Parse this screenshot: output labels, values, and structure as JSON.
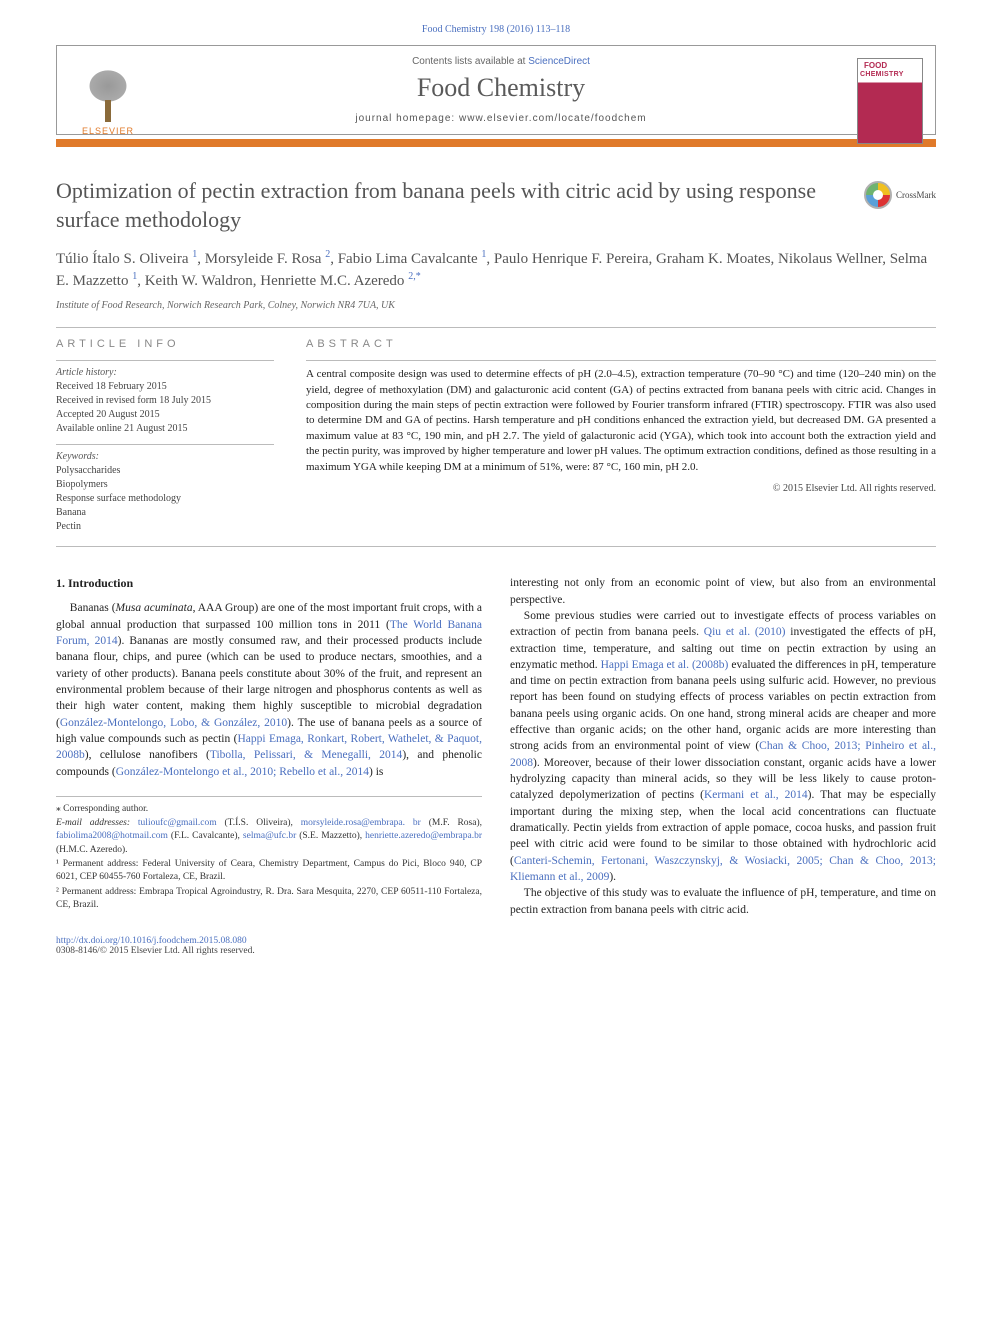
{
  "citation": "Food Chemistry 198 (2016) 113–118",
  "header": {
    "contents_prefix": "Contents lists available at ",
    "contents_link": "ScienceDirect",
    "journal": "Food Chemistry",
    "homepage_prefix": "journal homepage: ",
    "homepage_url": "www.elsevier.com/locate/foodchem",
    "publisher": "ELSEVIER",
    "cover_top": "FOOD",
    "cover_bottom": "CHEMISTRY"
  },
  "title": "Optimization of pectin extraction from banana peels with citric acid by using response surface methodology",
  "crossmark": "CrossMark",
  "authors_html": "Túlio Ítalo S. Oliveira <sup>1</sup>, Morsyleide F. Rosa <sup>2</sup>, Fabio Lima Cavalcante <sup>1</sup>, Paulo Henrique F. Pereira, Graham K. Moates, Nikolaus Wellner, Selma E. Mazzetto <sup>1</sup>, Keith W. Waldron, Henriette M.C. Azeredo <sup class='corr'>2,*</sup>",
  "affiliation": "Institute of Food Research, Norwich Research Park, Colney, Norwich NR4 7UA, UK",
  "info_label": "article info",
  "abstract_label": "abstract",
  "history": {
    "label": "Article history:",
    "received": "Received 18 February 2015",
    "revised": "Received in revised form 18 July 2015",
    "accepted": "Accepted 20 August 2015",
    "online": "Available online 21 August 2015"
  },
  "keywords": {
    "label": "Keywords:",
    "items": [
      "Polysaccharides",
      "Biopolymers",
      "Response surface methodology",
      "Banana",
      "Pectin"
    ]
  },
  "abstract": "A central composite design was used to determine effects of pH (2.0–4.5), extraction temperature (70–90 °C) and time (120–240 min) on the yield, degree of methoxylation (DM) and galacturonic acid content (GA) of pectins extracted from banana peels with citric acid. Changes in composition during the main steps of pectin extraction were followed by Fourier transform infrared (FTIR) spectroscopy. FTIR was also used to determine DM and GA of pectins. Harsh temperature and pH conditions enhanced the extraction yield, but decreased DM. GA presented a maximum value at 83 °C, 190 min, and pH 2.7. The yield of galacturonic acid (YGA), which took into account both the extraction yield and the pectin purity, was improved by higher temperature and lower pH values. The optimum extraction conditions, defined as those resulting in a maximum YGA while keeping DM at a minimum of 51%, were: 87 °C, 160 min, pH 2.0.",
  "abs_copyright": "© 2015 Elsevier Ltd. All rights reserved.",
  "intro_heading": "1. Introduction",
  "footnotes": {
    "corresponding": "⁎ Corresponding author.",
    "email_label": "E-mail addresses:",
    "emails": [
      {
        "addr": "tulioufc@gmail.com",
        "who": "(T.Í.S. Oliveira)"
      },
      {
        "addr": "morsyleide.rosa@embrapa. br",
        "who": "(M.F. Rosa)"
      },
      {
        "addr": "fabiolima2008@hotmail.com",
        "who": "(F.L. Cavalcante)"
      },
      {
        "addr": "selma@ufc.br",
        "who": "(S.E. Mazzetto)"
      },
      {
        "addr": "henriette.azeredo@embrapa.br",
        "who": "(H.M.C. Azeredo)."
      }
    ],
    "addr1": "¹ Permanent address: Federal University of Ceara, Chemistry Department, Campus do Pici, Bloco 940, CP 6021, CEP 60455-760 Fortaleza, CE, Brazil.",
    "addr2": "² Permanent address: Embrapa Tropical Agroindustry, R. Dra. Sara Mesquita, 2270, CEP 60511-110 Fortaleza, CE, Brazil."
  },
  "doi": {
    "link": "http://dx.doi.org/10.1016/j.foodchem.2015.08.080",
    "issn": "0308-8146/© 2015 Elsevier Ltd. All rights reserved."
  },
  "colors": {
    "accent_orange": "#e07a2a",
    "link_blue": "#4a6fbf",
    "cover_red": "#b32a52",
    "rule_gray": "#bbbbbb",
    "title_gray": "#555555"
  }
}
